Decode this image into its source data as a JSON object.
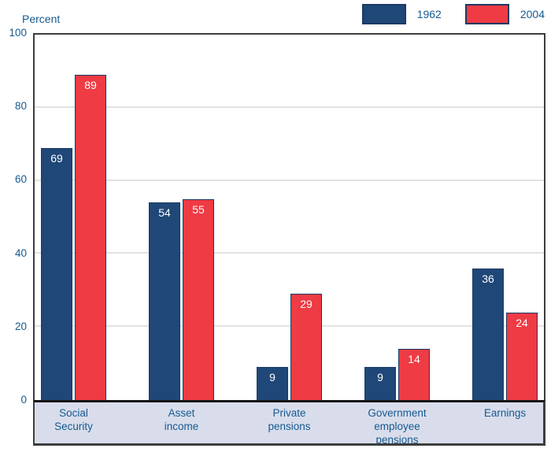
{
  "chart_data": {
    "type": "bar",
    "title": "",
    "ylabel": "Percent",
    "xlabel": "",
    "categories": [
      "Social Security",
      "Asset income",
      "Private pensions",
      "Government employee pensions",
      "Earnings"
    ],
    "category_lines": [
      [
        "Social",
        "Security"
      ],
      [
        "Asset",
        "income"
      ],
      [
        "Private",
        "pensions"
      ],
      [
        "Government",
        "employee",
        "pensions"
      ],
      [
        "Earnings"
      ]
    ],
    "series": [
      {
        "name": "1962",
        "color": "#1f4777",
        "values": [
          69,
          54,
          9,
          9,
          36
        ]
      },
      {
        "name": "2004",
        "color": "#ee3b44",
        "values": [
          89,
          55,
          29,
          14,
          24
        ]
      }
    ],
    "ylim": [
      0,
      100
    ],
    "yticks": [
      0,
      20,
      40,
      60,
      80,
      100
    ],
    "grid": true,
    "value_labels": true,
    "legend_position": "top-right"
  },
  "colors": {
    "tick_text": "#155a91",
    "category_label_text": "#155a91",
    "value_label_text": "#ffffff",
    "gridline": "#e2e2e2",
    "plot_border": "#3d3d3d",
    "label_band_bg": "#d9ddeb",
    "bar_border": "#1c3a64"
  }
}
